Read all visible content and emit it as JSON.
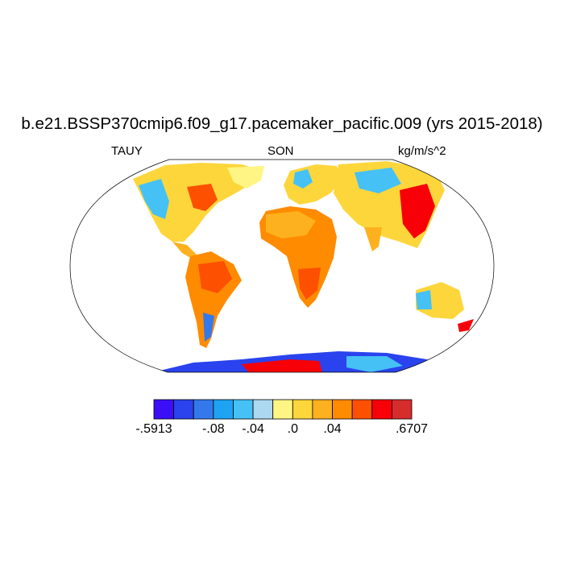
{
  "header": {
    "title": "b.e21.BSSP370cmip6.f09_g17.pacemaker_pacific.009 (yrs 2015-2018)",
    "left_label": "TAUY",
    "center_label": "SON",
    "right_label": "kg/m/s^2"
  },
  "colorbar": {
    "colors": [
      "#3a0ff7",
      "#2a43ee",
      "#3479ec",
      "#1ea2f2",
      "#45c1f5",
      "#acd8f0",
      "#fff584",
      "#fdd63c",
      "#fdb11e",
      "#ff8b00",
      "#fd5000",
      "#f70008",
      "#d62c2c"
    ],
    "labels": [
      {
        "text": "-.5913",
        "edge": 0
      },
      {
        "text": "-.08",
        "edge": 3
      },
      {
        "text": "-.04",
        "edge": 5
      },
      {
        "text": ".0",
        "edge": 7
      },
      {
        "text": ".04",
        "edge": 9
      },
      {
        "text": ".6707",
        "edge": 13
      }
    ]
  }
}
